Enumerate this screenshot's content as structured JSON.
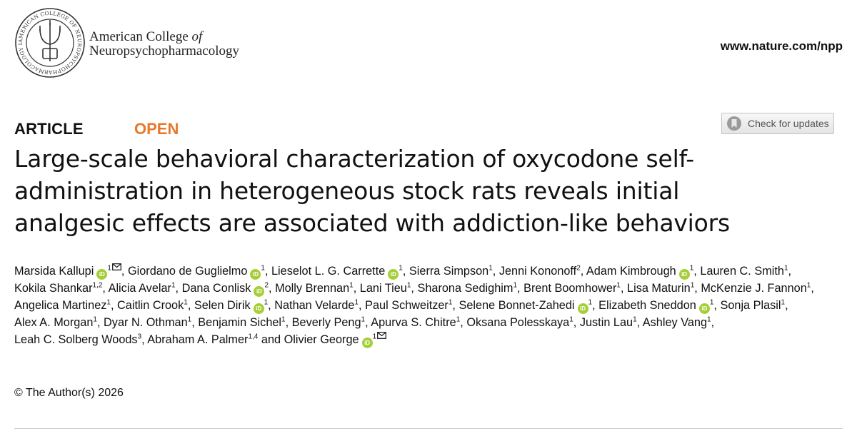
{
  "header": {
    "society_line1_prefix": "American College ",
    "society_line1_italic": "of",
    "society_line2": "Neuropsychopharmacology",
    "journal_url": "www.nature.com/npp",
    "seal_text": "AMERICAN COLLEGE OF NEUROPSYCHOPHARMACOLOGY INC."
  },
  "article_type": "ARTICLE",
  "access": "OPEN",
  "check_updates_label": "Check for updates",
  "title_lines": [
    "Large-scale behavioral characterization of oxycodone self-",
    "administration in heterogeneous stock rats reveals initial",
    "analgesic effects are associated with addiction-like behaviors"
  ],
  "authors": [
    {
      "name": "Marsida Kallupi",
      "orcid": true,
      "aff": "1",
      "corresponding": true
    },
    {
      "name": "Giordano de Guglielmo",
      "orcid": true,
      "aff": "1"
    },
    {
      "name": "Lieselot L. G. Carrette",
      "orcid": true,
      "aff": "1"
    },
    {
      "name": "Sierra Simpson",
      "orcid": false,
      "aff": "1"
    },
    {
      "name": "Jenni Kononoff",
      "orcid": false,
      "aff": "2"
    },
    {
      "name": "Adam Kimbrough",
      "orcid": true,
      "aff": "1"
    },
    {
      "name": "Lauren C. Smith",
      "orcid": false,
      "aff": "1"
    },
    {
      "name": "Kokila Shankar",
      "orcid": false,
      "aff": "1,2"
    },
    {
      "name": "Alicia Avelar",
      "orcid": false,
      "aff": "1"
    },
    {
      "name": "Dana Conlisk",
      "orcid": true,
      "aff": "2"
    },
    {
      "name": "Molly Brennan",
      "orcid": false,
      "aff": "1"
    },
    {
      "name": "Lani Tieu",
      "orcid": false,
      "aff": "1"
    },
    {
      "name": "Sharona Sedighim",
      "orcid": false,
      "aff": "1"
    },
    {
      "name": "Brent Boomhower",
      "orcid": false,
      "aff": "1"
    },
    {
      "name": "Lisa Maturin",
      "orcid": false,
      "aff": "1"
    },
    {
      "name": "McKenzie J. Fannon",
      "orcid": false,
      "aff": "1"
    },
    {
      "name": "Angelica Martinez",
      "orcid": false,
      "aff": "1"
    },
    {
      "name": "Caitlin Crook",
      "orcid": false,
      "aff": "1"
    },
    {
      "name": "Selen Dirik",
      "orcid": true,
      "aff": "1"
    },
    {
      "name": "Nathan Velarde",
      "orcid": false,
      "aff": "1"
    },
    {
      "name": "Paul Schweitzer",
      "orcid": false,
      "aff": "1"
    },
    {
      "name": "Selene Bonnet-Zahedi",
      "orcid": true,
      "aff": "1"
    },
    {
      "name": "Elizabeth Sneddon",
      "orcid": true,
      "aff": "1"
    },
    {
      "name": "Sonja Plasil",
      "orcid": false,
      "aff": "1"
    },
    {
      "name": "Alex A. Morgan",
      "orcid": false,
      "aff": "1"
    },
    {
      "name": "Dyar N. Othman",
      "orcid": false,
      "aff": "1"
    },
    {
      "name": "Benjamin Sichel",
      "orcid": false,
      "aff": "1"
    },
    {
      "name": "Beverly Peng",
      "orcid": false,
      "aff": "1"
    },
    {
      "name": "Apurva S. Chitre",
      "orcid": false,
      "aff": "1"
    },
    {
      "name": "Oksana Polesskaya",
      "orcid": false,
      "aff": "1"
    },
    {
      "name": "Justin Lau",
      "orcid": false,
      "aff": "1"
    },
    {
      "name": "Ashley Vang",
      "orcid": false,
      "aff": "1"
    },
    {
      "name": "Leah C. Solberg Woods",
      "orcid": false,
      "aff": "3"
    },
    {
      "name": "Abraham A. Palmer",
      "orcid": false,
      "aff": "1,4",
      "conj": " and"
    },
    {
      "name": "Olivier George",
      "orcid": true,
      "aff": "1",
      "corresponding": true
    }
  ],
  "orcid_label": "iD",
  "copyright": "© The Author(s) 2026"
}
